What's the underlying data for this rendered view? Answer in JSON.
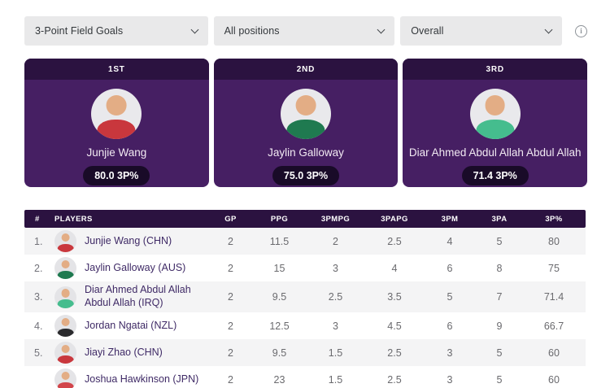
{
  "filters": {
    "dropdowns": [
      {
        "value": "3-Point Field Goals"
      },
      {
        "value": "All positions"
      },
      {
        "value": "Overall"
      }
    ],
    "info_label": "i"
  },
  "leaders": [
    {
      "place": "1ST",
      "name": "Junjie Wang",
      "stat": "80.0 3P%",
      "jersey_color": "#c9373d"
    },
    {
      "place": "2ND",
      "name": "Jaylin Galloway",
      "stat": "75.0 3P%",
      "jersey_color": "#1f7a50"
    },
    {
      "place": "3RD",
      "name": "Diar Ahmed Abdul Allah Abdul Allah",
      "stat": "71.4 3P%",
      "jersey_color": "#45bd8e"
    }
  ],
  "table": {
    "headers": [
      "#",
      "PLAYERS",
      "GP",
      "PPG",
      "3PMPG",
      "3PAPG",
      "3PM",
      "3PA",
      "3P%"
    ],
    "rows": [
      {
        "rank": "1.",
        "name": "Junjie Wang (CHN)",
        "jersey_color": "#c9373d",
        "stats": [
          "2",
          "11.5",
          "2",
          "2.5",
          "4",
          "5",
          "80"
        ]
      },
      {
        "rank": "2.",
        "name": "Jaylin Galloway (AUS)",
        "jersey_color": "#1f7a50",
        "stats": [
          "2",
          "15",
          "3",
          "4",
          "6",
          "8",
          "75"
        ]
      },
      {
        "rank": "3.",
        "name": "Diar Ahmed Abdul Allah Abdul Allah (IRQ)",
        "jersey_color": "#45bd8e",
        "stats": [
          "2",
          "9.5",
          "2.5",
          "3.5",
          "5",
          "7",
          "71.4"
        ]
      },
      {
        "rank": "4.",
        "name": "Jordan Ngatai (NZL)",
        "jersey_color": "#2b2b2e",
        "stats": [
          "2",
          "12.5",
          "3",
          "4.5",
          "6",
          "9",
          "66.7"
        ]
      },
      {
        "rank": "5.",
        "name": "Jiayi Zhao (CHN)",
        "jersey_color": "#c9373d",
        "stats": [
          "2",
          "9.5",
          "1.5",
          "2.5",
          "3",
          "5",
          "60"
        ]
      },
      {
        "rank": "",
        "name": "Joshua Hawkinson (JPN)",
        "jersey_color": "#d2454b",
        "stats": [
          "2",
          "23",
          "1.5",
          "2.5",
          "3",
          "5",
          "60"
        ]
      }
    ]
  },
  "colors": {
    "card_header_bg": "#2b1240",
    "card_body_bg": "#461f63",
    "badge_bg": "#190b28",
    "table_header_bg": "#2b1240",
    "row_stripe_bg": "#f4f4f5",
    "player_name_text": "#3f2a66",
    "stat_text": "#6a6a6e",
    "dropdown_bg": "#e9e9ea"
  }
}
